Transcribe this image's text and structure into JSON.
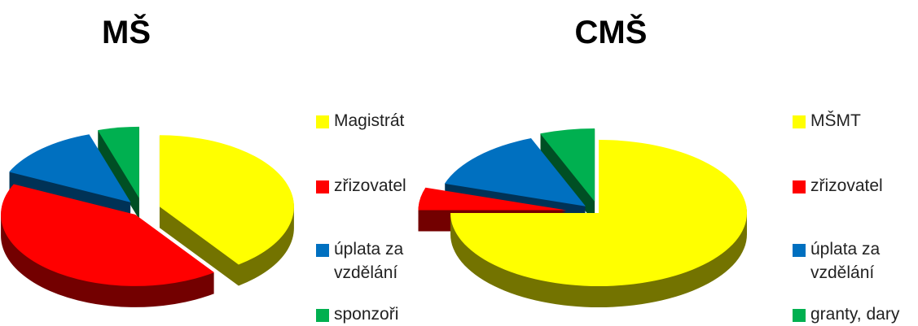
{
  "chart_data": [
    {
      "type": "pie",
      "title": "MŠ",
      "categories": [
        "Magistrát",
        "zřizovatel",
        "úplata za vzdělání",
        "sponzoři"
      ],
      "values": [
        40,
        42,
        13,
        5
      ],
      "colors": [
        "#ffff00",
        "#ff0000",
        "#0070c0",
        "#00b050"
      ]
    },
    {
      "type": "pie",
      "title": "CMŠ",
      "categories": [
        "MŠMT",
        "zřizovatel",
        "úplata za vzdělání",
        "granty, dary"
      ],
      "values": [
        75,
        5,
        14,
        6
      ],
      "colors": [
        "#ffff00",
        "#ff0000",
        "#0070c0",
        "#00b050"
      ]
    }
  ]
}
